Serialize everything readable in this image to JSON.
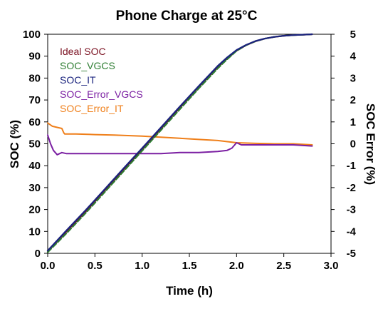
{
  "chart_data": {
    "type": "line",
    "title": "Phone Charge at 25°C",
    "xlabel": "Time (h)",
    "ylabel": "SOC (%)",
    "y2label": "SOC Error (%)",
    "xlim": [
      0,
      3
    ],
    "ylim": [
      0,
      100
    ],
    "y2lim": [
      -5,
      5
    ],
    "x_ticks": [
      "0.0",
      "0.5",
      "1.0",
      "1.5",
      "2.0",
      "2.5",
      "3.0"
    ],
    "y_ticks": [
      "0",
      "10",
      "20",
      "30",
      "40",
      "50",
      "60",
      "70",
      "80",
      "90",
      "100"
    ],
    "y2_ticks": [
      "-5",
      "-4",
      "-3",
      "-2",
      "-1",
      "0",
      "1",
      "2",
      "3",
      "4",
      "5"
    ],
    "grid": false,
    "legend_position": "top-left",
    "series": [
      {
        "name": "Ideal SOC",
        "axis": "left",
        "color": "#7a1020",
        "x": [
          0,
          0.2,
          0.4,
          0.6,
          0.8,
          1.0,
          1.2,
          1.4,
          1.6,
          1.8,
          1.9,
          2.0,
          2.1,
          2.2,
          2.3,
          2.4,
          2.5,
          2.6,
          2.7,
          2.8
        ],
        "values": [
          1,
          10,
          19,
          28.5,
          38,
          47.5,
          57,
          66.5,
          76,
          85,
          89,
          92.5,
          95,
          96.8,
          98,
          98.8,
          99.3,
          99.6,
          99.8,
          100
        ]
      },
      {
        "name": "SOC_VGCS",
        "axis": "left",
        "color": "#2e7d32",
        "x": [
          0,
          0.2,
          0.4,
          0.6,
          0.8,
          1.0,
          1.2,
          1.4,
          1.6,
          1.8,
          1.9,
          2.0,
          2.1,
          2.2,
          2.3,
          2.4,
          2.5,
          2.6,
          2.7,
          2.8
        ],
        "values": [
          0.5,
          9.2,
          18.3,
          27.8,
          37.3,
          46.8,
          56.3,
          65.8,
          75.3,
          84.4,
          88.6,
          92.4,
          95,
          96.8,
          98,
          98.8,
          99.3,
          99.6,
          99.8,
          100
        ]
      },
      {
        "name": "SOC_IT",
        "axis": "left",
        "color": "#1a237e",
        "x": [
          0,
          0.2,
          0.4,
          0.6,
          0.8,
          1.0,
          1.2,
          1.4,
          1.6,
          1.8,
          1.9,
          2.0,
          2.1,
          2.2,
          2.3,
          2.4,
          2.5,
          2.6,
          2.7,
          2.8
        ],
        "values": [
          1.2,
          10.5,
          19.6,
          29.1,
          38.6,
          48,
          57.5,
          67,
          76.4,
          85.5,
          89.4,
          92.8,
          95.1,
          96.9,
          98,
          98.8,
          99.3,
          99.6,
          99.8,
          100
        ]
      },
      {
        "name": "SOC_Error_VGCS",
        "axis": "right",
        "color": "#7b1fa2",
        "x": [
          0,
          0.03,
          0.06,
          0.1,
          0.15,
          0.2,
          0.3,
          0.4,
          0.6,
          0.8,
          1.0,
          1.2,
          1.4,
          1.6,
          1.8,
          1.9,
          1.95,
          2.0,
          2.05,
          2.2,
          2.4,
          2.6,
          2.8
        ],
        "values": [
          0.4,
          0,
          -0.3,
          -0.5,
          -0.4,
          -0.45,
          -0.45,
          -0.45,
          -0.45,
          -0.45,
          -0.45,
          -0.45,
          -0.4,
          -0.4,
          -0.35,
          -0.3,
          -0.2,
          0.05,
          -0.05,
          -0.05,
          -0.05,
          -0.05,
          -0.1
        ]
      },
      {
        "name": "SOC_Error_IT",
        "axis": "right",
        "color": "#ef7f1a",
        "x": [
          0,
          0.05,
          0.1,
          0.15,
          0.17,
          0.18,
          0.3,
          0.5,
          0.7,
          1.0,
          1.2,
          1.4,
          1.6,
          1.8,
          2.0,
          2.2,
          2.4,
          2.6,
          2.8
        ],
        "values": [
          0.95,
          0.8,
          0.75,
          0.7,
          0.5,
          0.45,
          0.45,
          0.42,
          0.4,
          0.35,
          0.3,
          0.25,
          0.2,
          0.15,
          0.05,
          0.02,
          0,
          0,
          -0.05
        ]
      }
    ]
  }
}
